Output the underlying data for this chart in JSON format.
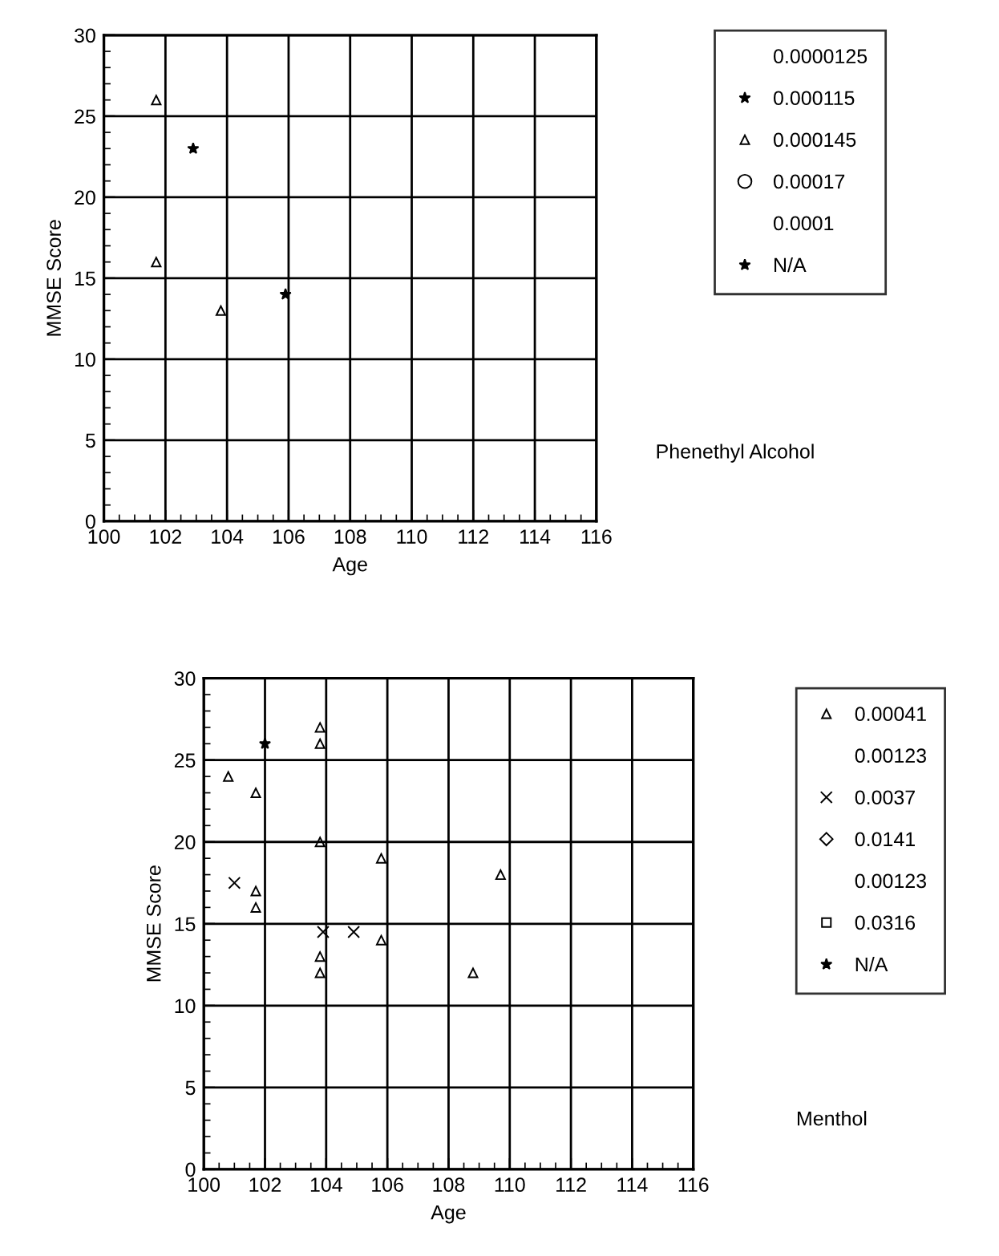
{
  "chart_data": [
    {
      "type": "scatter",
      "xlabel": "Age",
      "ylabel": "MMSE Score",
      "xlim": [
        100,
        116
      ],
      "ylim": [
        0,
        30
      ],
      "xticks": [
        100,
        102,
        104,
        106,
        108,
        110,
        112,
        114,
        116
      ],
      "yticks": [
        0,
        5,
        10,
        15,
        20,
        25,
        30
      ],
      "grid": true,
      "legend": "right",
      "annotations": [
        "Phenethyl Alcohol"
      ],
      "series": [
        {
          "name": "0.0000125",
          "color": "#000000",
          "marker": "none"
        },
        {
          "name": "0.000115",
          "color": "#000000",
          "marker": "star",
          "x": [
            102.9
          ],
          "values": [
            23
          ]
        },
        {
          "name": "0.000145",
          "color": "#000000",
          "marker": "triangle",
          "x": [
            101.7,
            101.7,
            103.8
          ],
          "values": [
            26,
            16,
            13
          ]
        },
        {
          "name": "0.00017",
          "color": "#000000",
          "marker": "circle"
        },
        {
          "name": "0.0001",
          "color": "#000000",
          "marker": "none"
        },
        {
          "name": "N/A",
          "color": "#000000",
          "marker": "star",
          "x": [
            105.9
          ],
          "values": [
            14
          ]
        }
      ]
    },
    {
      "type": "scatter",
      "xlabel": "Age",
      "ylabel": "MMSE Score",
      "xlim": [
        100,
        116
      ],
      "ylim": [
        0,
        30
      ],
      "xticks": [
        100,
        102,
        104,
        106,
        108,
        110,
        112,
        114,
        116
      ],
      "yticks": [
        0,
        5,
        10,
        15,
        20,
        25,
        30
      ],
      "grid": true,
      "legend": "right",
      "annotations": [
        "Menthol"
      ],
      "series": [
        {
          "name": "0.00041",
          "color": "#000000",
          "marker": "triangle",
          "x": [
            100.8,
            101.7,
            103.8,
            103.8,
            103.8,
            105.8,
            101.7,
            101.7,
            105.8,
            103.8,
            103.8,
            109.7,
            108.8
          ],
          "values": [
            24,
            23,
            27,
            26,
            20,
            19,
            17,
            16,
            14,
            13,
            12,
            18,
            12
          ]
        },
        {
          "name": "0.00123",
          "color": "#000000",
          "marker": "none"
        },
        {
          "name": "0.0037",
          "color": "#000000",
          "marker": "cross",
          "x": [
            101,
            103.9,
            104.9
          ],
          "values": [
            17.5,
            14.5,
            14.5
          ]
        },
        {
          "name": "0.0141",
          "color": "#000000",
          "marker": "diamond"
        },
        {
          "name": "0.00123",
          "color": "#000000",
          "marker": "none"
        },
        {
          "name": "0.0316",
          "color": "#000000",
          "marker": "square"
        },
        {
          "name": "N/A",
          "color": "#000000",
          "marker": "star",
          "x": [
            102
          ],
          "values": [
            26
          ]
        }
      ]
    }
  ]
}
